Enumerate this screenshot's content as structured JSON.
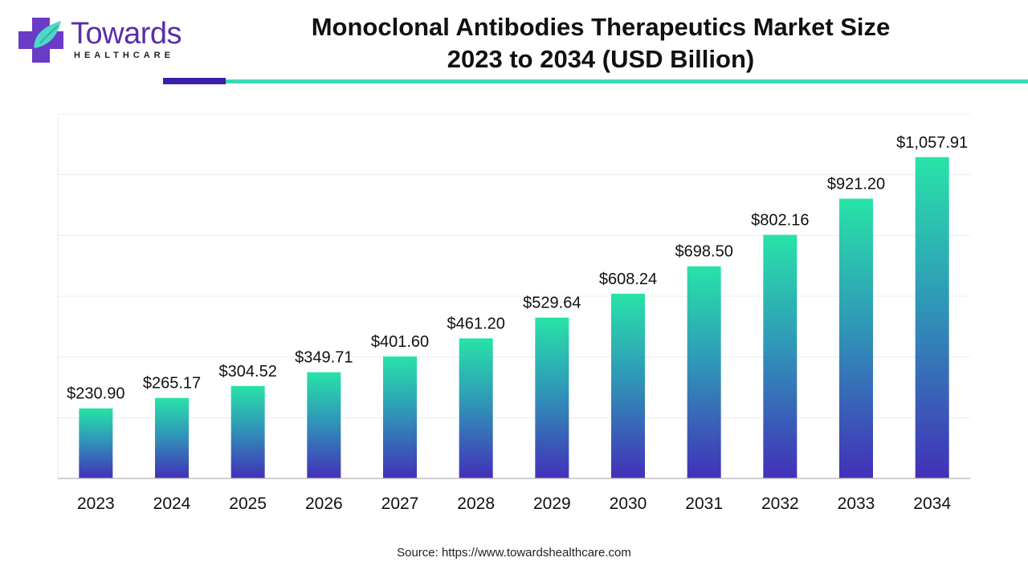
{
  "brand": {
    "name": "Towards",
    "tagline": "HEALTHCARE",
    "colors": {
      "primary": "#5a2ea6",
      "accent": "#3cd7b4",
      "dark_accent": "#3b1fa8"
    }
  },
  "header": {
    "title_line1": "Monoclonal Antibodies Therapeutics Market Size",
    "title_line2": "2023 to 2034 (USD Billion)"
  },
  "chart_data": {
    "type": "bar",
    "title": "Monoclonal Antibodies Therapeutics Market Size 2023 to 2034 (USD Billion)",
    "categories": [
      "2023",
      "2024",
      "2025",
      "2026",
      "2027",
      "2028",
      "2029",
      "2030",
      "2031",
      "2032",
      "2033",
      "2034"
    ],
    "values": [
      230.9,
      265.17,
      304.52,
      349.71,
      401.6,
      461.2,
      529.64,
      608.24,
      698.5,
      802.16,
      921.2,
      1057.91
    ],
    "data_labels": [
      "$230.90",
      "$265.17",
      "$304.52",
      "$349.71",
      "$401.60",
      "$461.20",
      "$529.64",
      "$608.24",
      "$698.50",
      "$802.16",
      "$921.20",
      "$1,057.91"
    ],
    "xlabel": "",
    "ylabel": "",
    "ylim": [
      0,
      1200
    ],
    "grid": true,
    "gradient": {
      "top": "#28e3a8",
      "mid": "#2f98b8",
      "bottom": "#4230b8"
    }
  },
  "footer": {
    "source": "Source: https://www.towardshealthcare.com"
  }
}
